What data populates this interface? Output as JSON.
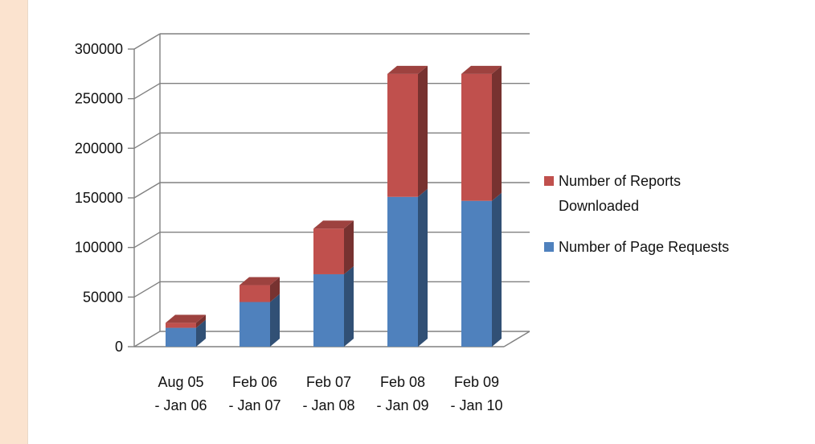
{
  "chart_data": {
    "type": "bar",
    "stacked": true,
    "style": "3d-column",
    "title": "",
    "xlabel": "",
    "ylabel": "",
    "ylim": [
      0,
      300000
    ],
    "yticks": [
      "0",
      "50000",
      "100000",
      "150000",
      "200000",
      "250000",
      "300000"
    ],
    "grid": true,
    "legend_position": "right",
    "categories": [
      [
        "Aug 05",
        "- Jan 06"
      ],
      [
        "Feb 06",
        "- Jan 07"
      ],
      [
        "Feb 07",
        "- Jan 08"
      ],
      [
        "Feb 08",
        "- Jan 09"
      ],
      [
        "Feb 09",
        "- Jan 10"
      ]
    ],
    "series": [
      {
        "name": "Number of Page Requests",
        "color": "#4f81bd",
        "values": [
          19000,
          45000,
          73000,
          151000,
          147000
        ]
      },
      {
        "name": "Number of Reports Downloaded",
        "color": "#c0504d",
        "values": [
          5000,
          17000,
          46000,
          124000,
          128000
        ]
      }
    ],
    "legend": [
      {
        "lines": [
          "Number of Reports",
          "Downloaded"
        ],
        "color": "#c0504d"
      },
      {
        "lines": [
          "Number of Page Requests"
        ],
        "color": "#4f81bd"
      }
    ]
  }
}
